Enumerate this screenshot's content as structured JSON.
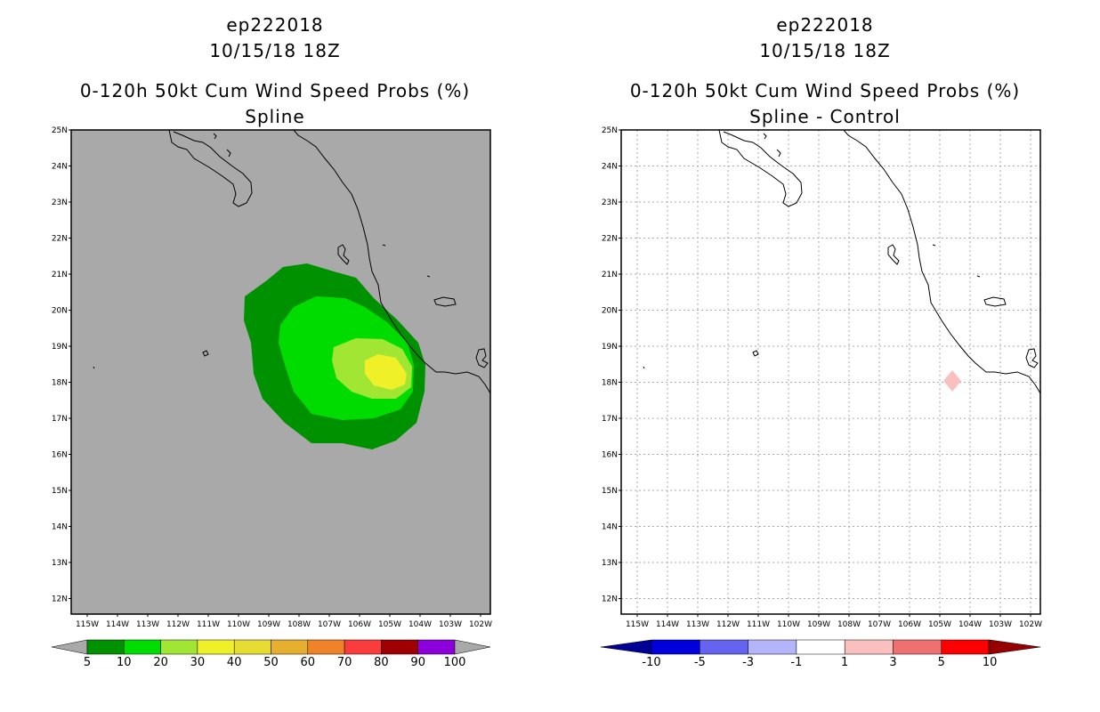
{
  "left_panel": {
    "storm_id": "ep222018",
    "datetime": "10/15/18 18Z",
    "product": "0-120h 50kt Cum Wind Speed Probs (%)",
    "subtitle": "Spline",
    "background_color": "#a9a9a9",
    "lat_labels": [
      "25N",
      "24N",
      "23N",
      "22N",
      "21N",
      "20N",
      "19N",
      "18N",
      "17N",
      "16N",
      "15N",
      "14N",
      "13N",
      "12N"
    ],
    "lon_labels": [
      "115W",
      "114W",
      "113W",
      "112W",
      "111W",
      "110W",
      "109W",
      "108W",
      "107W",
      "106W",
      "105W",
      "104W",
      "103W",
      "102W"
    ],
    "colorbar": {
      "colors": [
        "#009100",
        "#00dc00",
        "#a0e632",
        "#f0f028",
        "#e6dc32",
        "#e6af2d",
        "#f08228",
        "#fa3c3c",
        "#a00000",
        "#8c00dc"
      ],
      "labels": [
        "5",
        "10",
        "20",
        "30",
        "40",
        "50",
        "60",
        "70",
        "80",
        "90",
        "100"
      ]
    }
  },
  "right_panel": {
    "storm_id": "ep222018",
    "datetime": "10/15/18 18Z",
    "product": "0-120h 50kt Cum Wind Speed Probs (%)",
    "subtitle": "Spline - Control",
    "background_color": "#ffffff",
    "lat_labels": [
      "25N",
      "24N",
      "23N",
      "22N",
      "21N",
      "20N",
      "19N",
      "18N",
      "17N",
      "16N",
      "15N",
      "14N",
      "13N",
      "12N"
    ],
    "lon_labels": [
      "115W",
      "114W",
      "113W",
      "112W",
      "111W",
      "110W",
      "109W",
      "108W",
      "107W",
      "106W",
      "105W",
      "104W",
      "103W",
      "102W"
    ],
    "colorbar": {
      "colors": [
        "#0000dc",
        "#6464f0",
        "#b4b4fa",
        "#ffffff",
        "#fac0c0",
        "#f07070",
        "#ff0000"
      ],
      "end_colors": [
        "#000096",
        "#960000"
      ],
      "labels": [
        "-10",
        "-5",
        "-3",
        "-1",
        "1",
        "3",
        "5",
        "10"
      ]
    }
  }
}
